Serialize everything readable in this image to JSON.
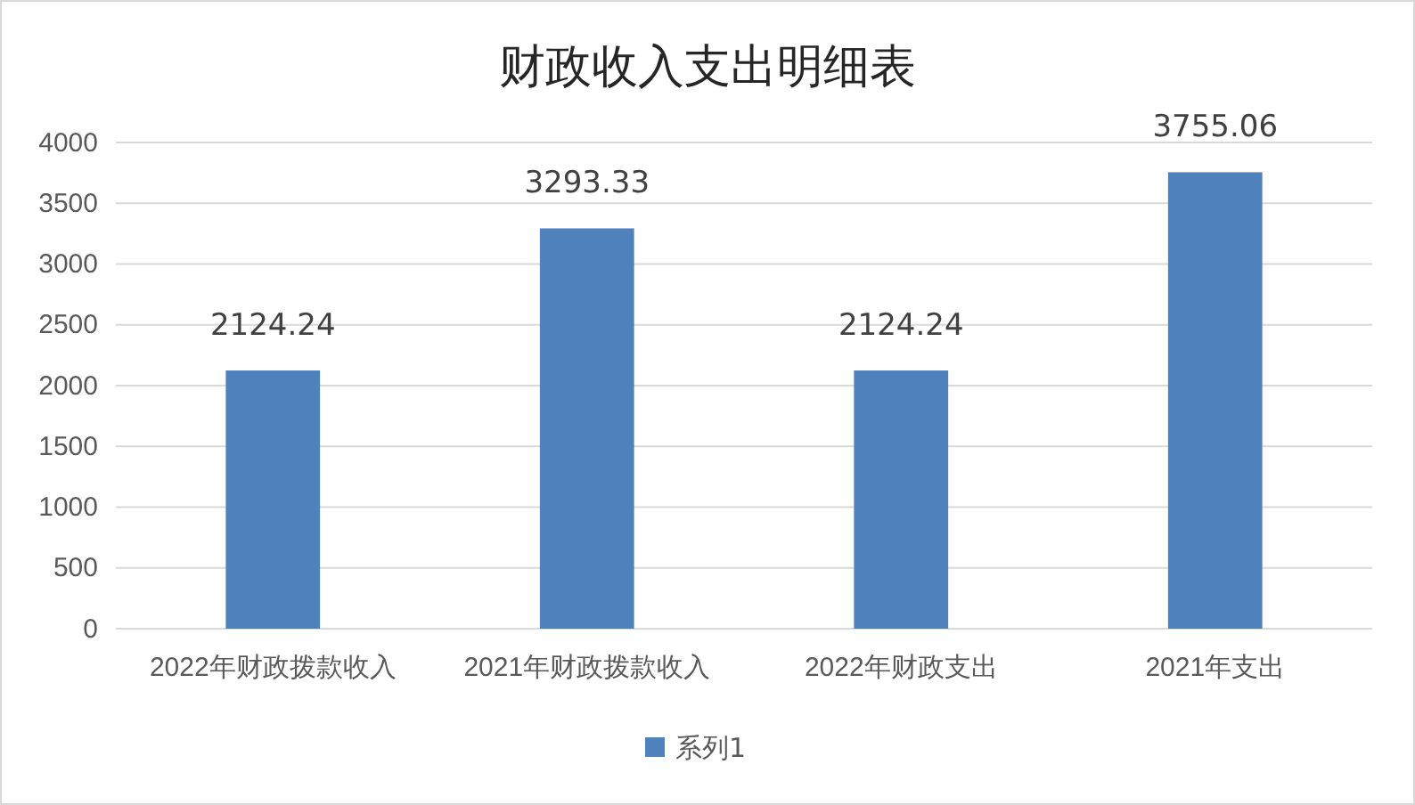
{
  "chart_data": {
    "type": "bar",
    "title": "财政收入支出明细表",
    "categories": [
      "2022年财政拨款收入",
      "2021年财政拨款收入",
      "2022年财政支出",
      "2021年支出"
    ],
    "series": [
      {
        "name": "系列1",
        "color": "#4f81bd",
        "values": [
          2124.24,
          3293.33,
          2124.24,
          3755.06
        ]
      }
    ],
    "ylim": [
      0,
      4000
    ],
    "yticks": [
      0,
      500,
      1000,
      1500,
      2000,
      2500,
      3000,
      3500,
      4000
    ],
    "grid": "y",
    "legend": "bottom",
    "data_labels": true
  }
}
